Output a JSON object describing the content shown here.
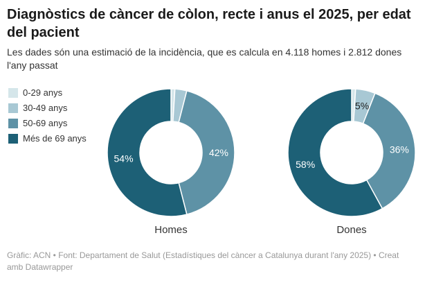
{
  "header": {
    "title": "Diagnòstics de càncer de còlon, recte i anus el 2025, per edat del pacient",
    "subtitle": "Les dades són una estimació de la incidència, que es calcula en 4.118 homes i 2.812 dones l'any passat"
  },
  "legend": {
    "items": [
      {
        "label": "0-29 anys"
      },
      {
        "label": "30-49 anys"
      },
      {
        "label": "50-69 anys"
      },
      {
        "label": "Més de 69 anys"
      }
    ]
  },
  "chart_data": {
    "type": "pie",
    "subtype": "donut",
    "legend_position": "left",
    "categories": [
      "0-29 anys",
      "30-49 anys",
      "50-69 anys",
      "Més de 69 anys"
    ],
    "colors": [
      "#d5e6ea",
      "#a8c8d4",
      "#5e92a6",
      "#1d6076"
    ],
    "slice_label_colors": [
      "#1d1d1d",
      "#1d1d1d",
      "#ffffff",
      "#ffffff"
    ],
    "series": [
      {
        "name": "Homes",
        "values": [
          1,
          3,
          42,
          54
        ],
        "slice_labels": [
          "",
          "",
          "42%",
          "54%"
        ]
      },
      {
        "name": "Dones",
        "values": [
          1,
          5,
          36,
          58
        ],
        "slice_labels": [
          "",
          "5%",
          "36%",
          "58%"
        ]
      }
    ]
  },
  "footer": {
    "text": "Gràfic: ACN • Font: Departament de Salut (Estadístiques del càncer a Catalunya durant l'any 2025) • Creat amb Datawrapper"
  }
}
